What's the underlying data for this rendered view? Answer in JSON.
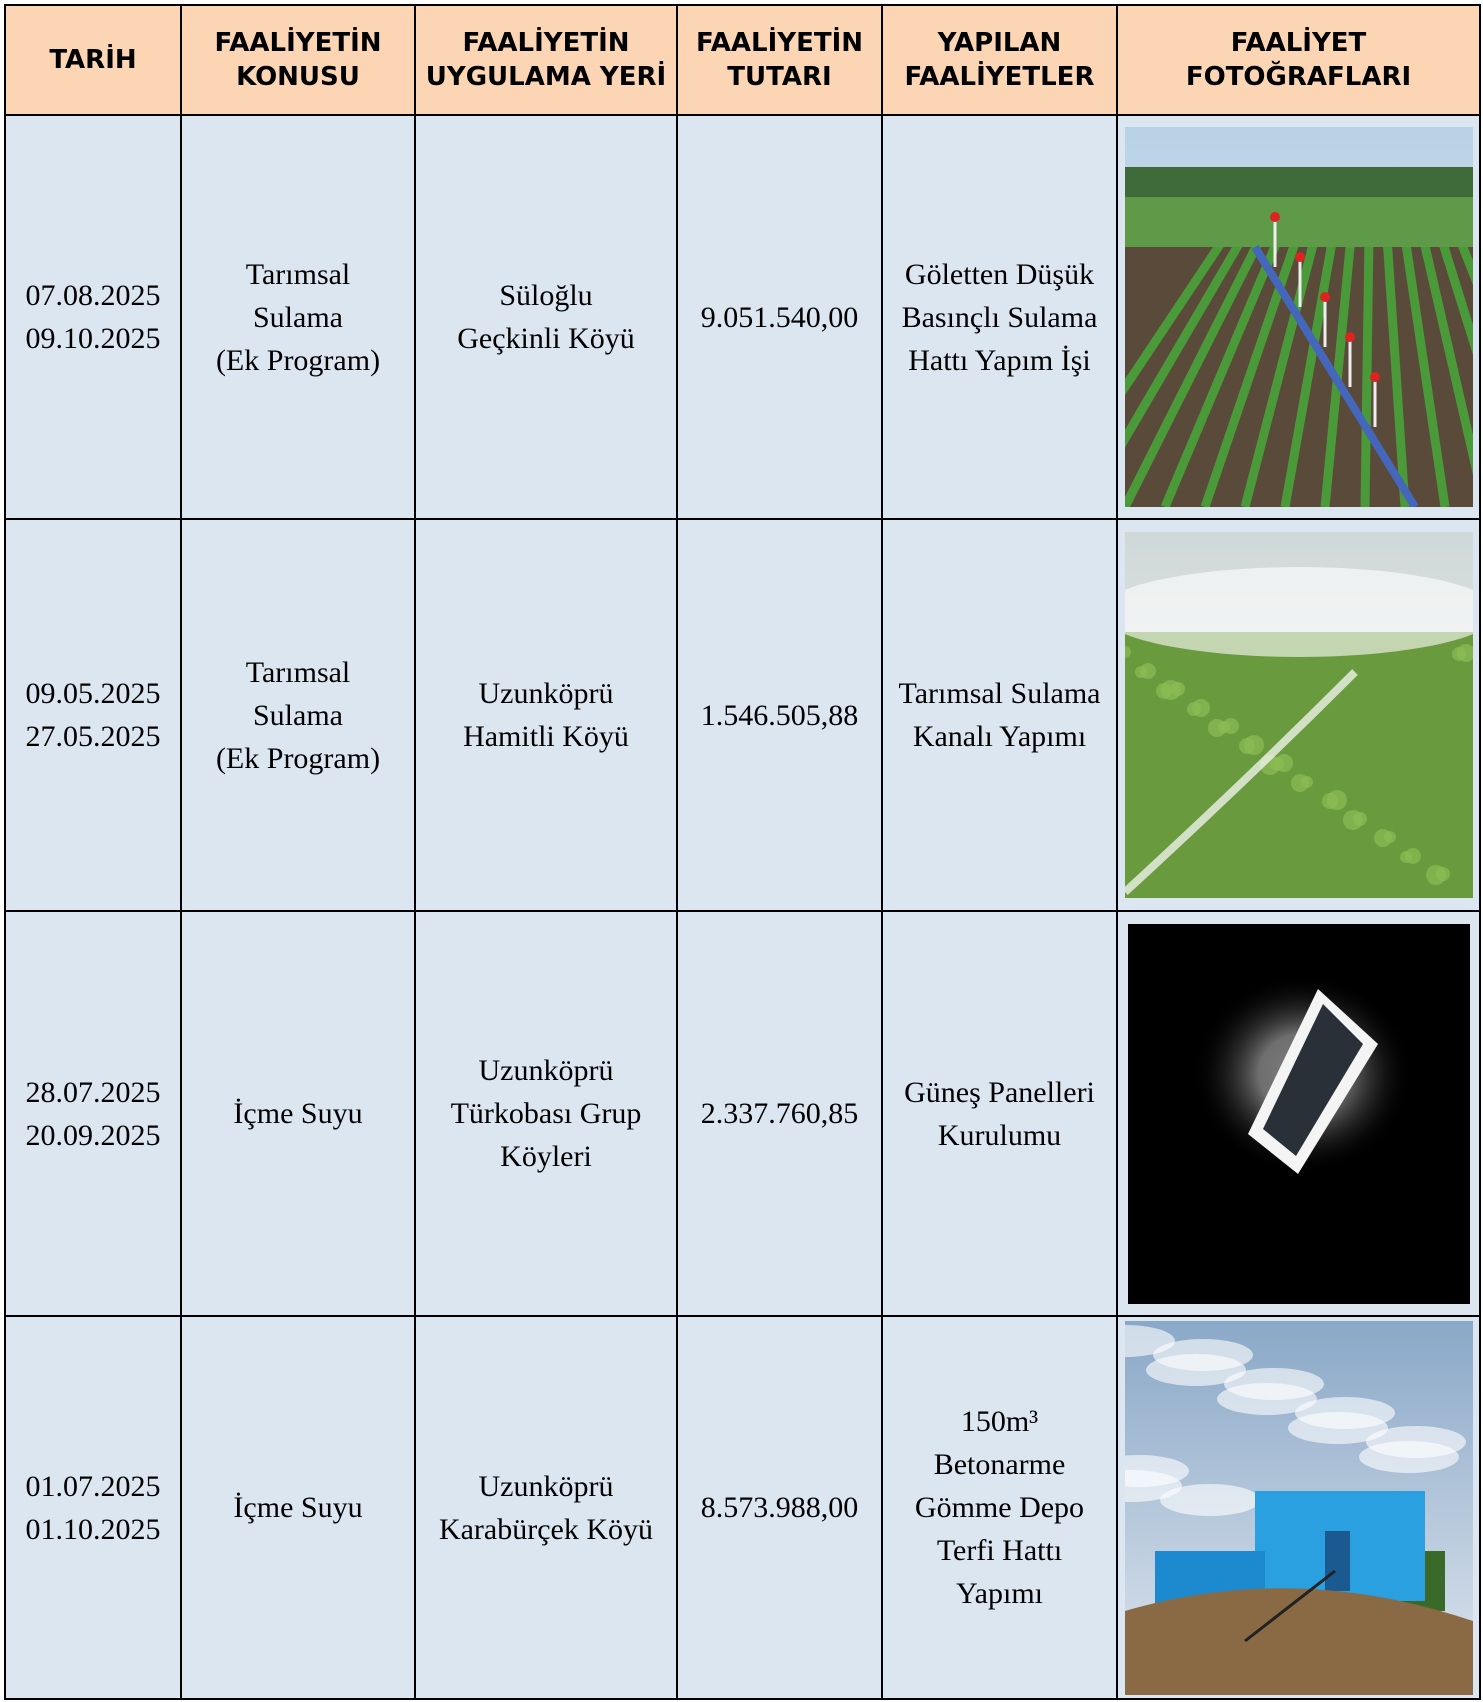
{
  "table": {
    "header": [
      "TARİH",
      "FAALİYETİN\nKONUSU",
      "FAALİYETİN\nUYGULAMA YERİ",
      "FAALİYETİN\nTUTARI",
      "YAPILAN\nFAALİYETLER",
      "FAALİYET\nFOTOĞRAFLARI"
    ],
    "rows": [
      [
        "07.08.2025\n09.10.2025",
        "Tarımsal\nSulama\n(Ek Program)",
        "Süloğlu\nGeçkinli Köyü",
        "9.051.540,00",
        "Göletten Düşük\nBasınçlı Sulama\nHattı Yapım İşi"
      ],
      [
        "09.05.2025\n27.05.2025",
        "Tarımsal\nSulama\n(Ek Program)",
        "Uzunköprü\nHamitli Köyü",
        "1.546.505,88",
        "Tarımsal Sulama\nKanalı Yapımı"
      ],
      [
        "28.07.2025\n20.09.2025",
        "İçme Suyu",
        "Uzunköprü\nTürkobası Grup\nKöyleri",
        "2.337.760,85",
        "Güneş Panelleri\nKurulumu"
      ],
      [
        "01.07.2025\n01.10.2025",
        "İçme Suyu",
        "Uzunköprü\nKarabürçek Köyü",
        "8.573.988,00",
        "150m³\nBetonarme\nGömme Depo\nTerfi Hattı\nYapımı"
      ]
    ]
  }
}
